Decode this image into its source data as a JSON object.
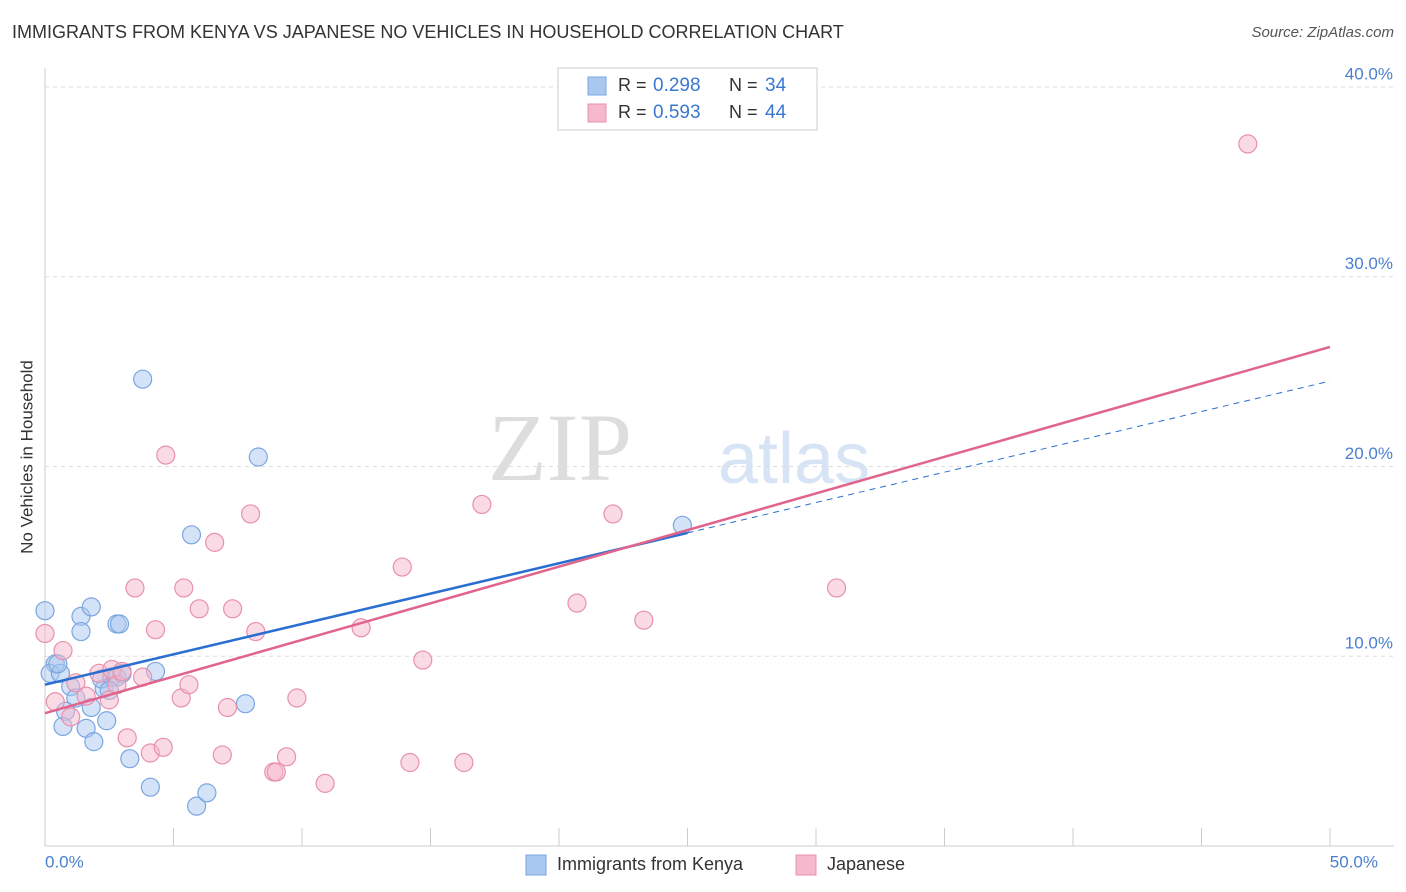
{
  "chart_data": {
    "type": "scatter",
    "title": "IMMIGRANTS FROM KENYA VS JAPANESE NO VEHICLES IN HOUSEHOLD CORRELATION CHART",
    "source": "Source: ZipAtlas.com",
    "watermark": [
      "ZIP",
      "atlas"
    ],
    "y_label": "No Vehicles in Household",
    "xlim": [
      0,
      50
    ],
    "ylim": [
      0,
      41
    ],
    "xticks": [
      {
        "value": 0,
        "label": "0.0%"
      },
      {
        "value": 50,
        "label": "50.0%"
      }
    ],
    "xminorticks": [
      5,
      10,
      15,
      20,
      25,
      30,
      35,
      40,
      45
    ],
    "yticks": [
      {
        "value": 10,
        "label": "10.0%"
      },
      {
        "value": 20,
        "label": "20.0%"
      },
      {
        "value": 30,
        "label": "30.0%"
      },
      {
        "value": 40,
        "label": "40.0%"
      }
    ],
    "grid": true,
    "legend_labels": {
      "r": "R =",
      "n": "N ="
    },
    "series": [
      {
        "name": "Immigrants from Kenya",
        "color": "#a9c8f0",
        "stroke": "#7aa6e0",
        "line_color": "#2a6fd0",
        "r": 0.298,
        "n": 34,
        "trend": {
          "x0": 0,
          "y0": 8.5,
          "x1": 50,
          "y1": 24.5,
          "solid_until": 25
        },
        "x": [
          0.0,
          0.4,
          0.2,
          0.6,
          1.0,
          1.2,
          0.8,
          0.7,
          1.4,
          1.8,
          1.4,
          1.8,
          1.6,
          1.9,
          2.4,
          2.3,
          2.2,
          2.6,
          2.8,
          3.0,
          2.8,
          2.9,
          3.3,
          3.8,
          4.1,
          4.3,
          5.7,
          5.9,
          6.3,
          7.8,
          8.3,
          24.8,
          0.5,
          2.5
        ],
        "values": [
          12.4,
          9.6,
          9.1,
          9.1,
          8.4,
          7.8,
          7.1,
          6.3,
          12.1,
          12.6,
          11.3,
          7.3,
          6.2,
          5.5,
          6.6,
          8.3,
          8.8,
          8.9,
          8.9,
          9.1,
          11.7,
          11.7,
          4.6,
          24.6,
          3.1,
          9.2,
          16.4,
          2.1,
          2.8,
          7.5,
          20.5,
          16.9,
          9.6,
          8.2
        ]
      },
      {
        "name": "Japanese",
        "color": "#f6b8cc",
        "stroke": "#e890ac",
        "line_color": "#e0648c",
        "r": 0.593,
        "n": 44,
        "trend": {
          "x0": 0,
          "y0": 7.0,
          "x1": 50,
          "y1": 26.3,
          "solid_until": 50
        },
        "x": [
          0.0,
          0.4,
          0.7,
          1.0,
          1.2,
          1.6,
          2.1,
          2.5,
          2.6,
          2.8,
          3.2,
          3.5,
          3.8,
          4.1,
          4.3,
          4.6,
          4.7,
          5.3,
          5.4,
          5.6,
          6.0,
          6.6,
          6.9,
          7.1,
          7.3,
          8.0,
          8.2,
          8.9,
          9.0,
          9.4,
          9.8,
          10.9,
          12.3,
          13.9,
          14.2,
          14.7,
          16.3,
          17.0,
          20.7,
          22.1,
          23.3,
          30.8,
          46.8,
          3.0
        ],
        "values": [
          11.2,
          7.6,
          10.3,
          6.8,
          8.6,
          7.9,
          9.1,
          7.7,
          9.3,
          8.5,
          5.7,
          13.6,
          8.9,
          4.9,
          11.4,
          5.2,
          20.6,
          7.8,
          13.6,
          8.5,
          12.5,
          16.0,
          4.8,
          7.3,
          12.5,
          17.5,
          11.3,
          3.9,
          3.9,
          4.7,
          7.8,
          3.3,
          11.5,
          14.7,
          4.4,
          9.8,
          4.4,
          18.0,
          12.8,
          17.5,
          11.9,
          13.6,
          37.0,
          9.2
        ]
      }
    ]
  }
}
